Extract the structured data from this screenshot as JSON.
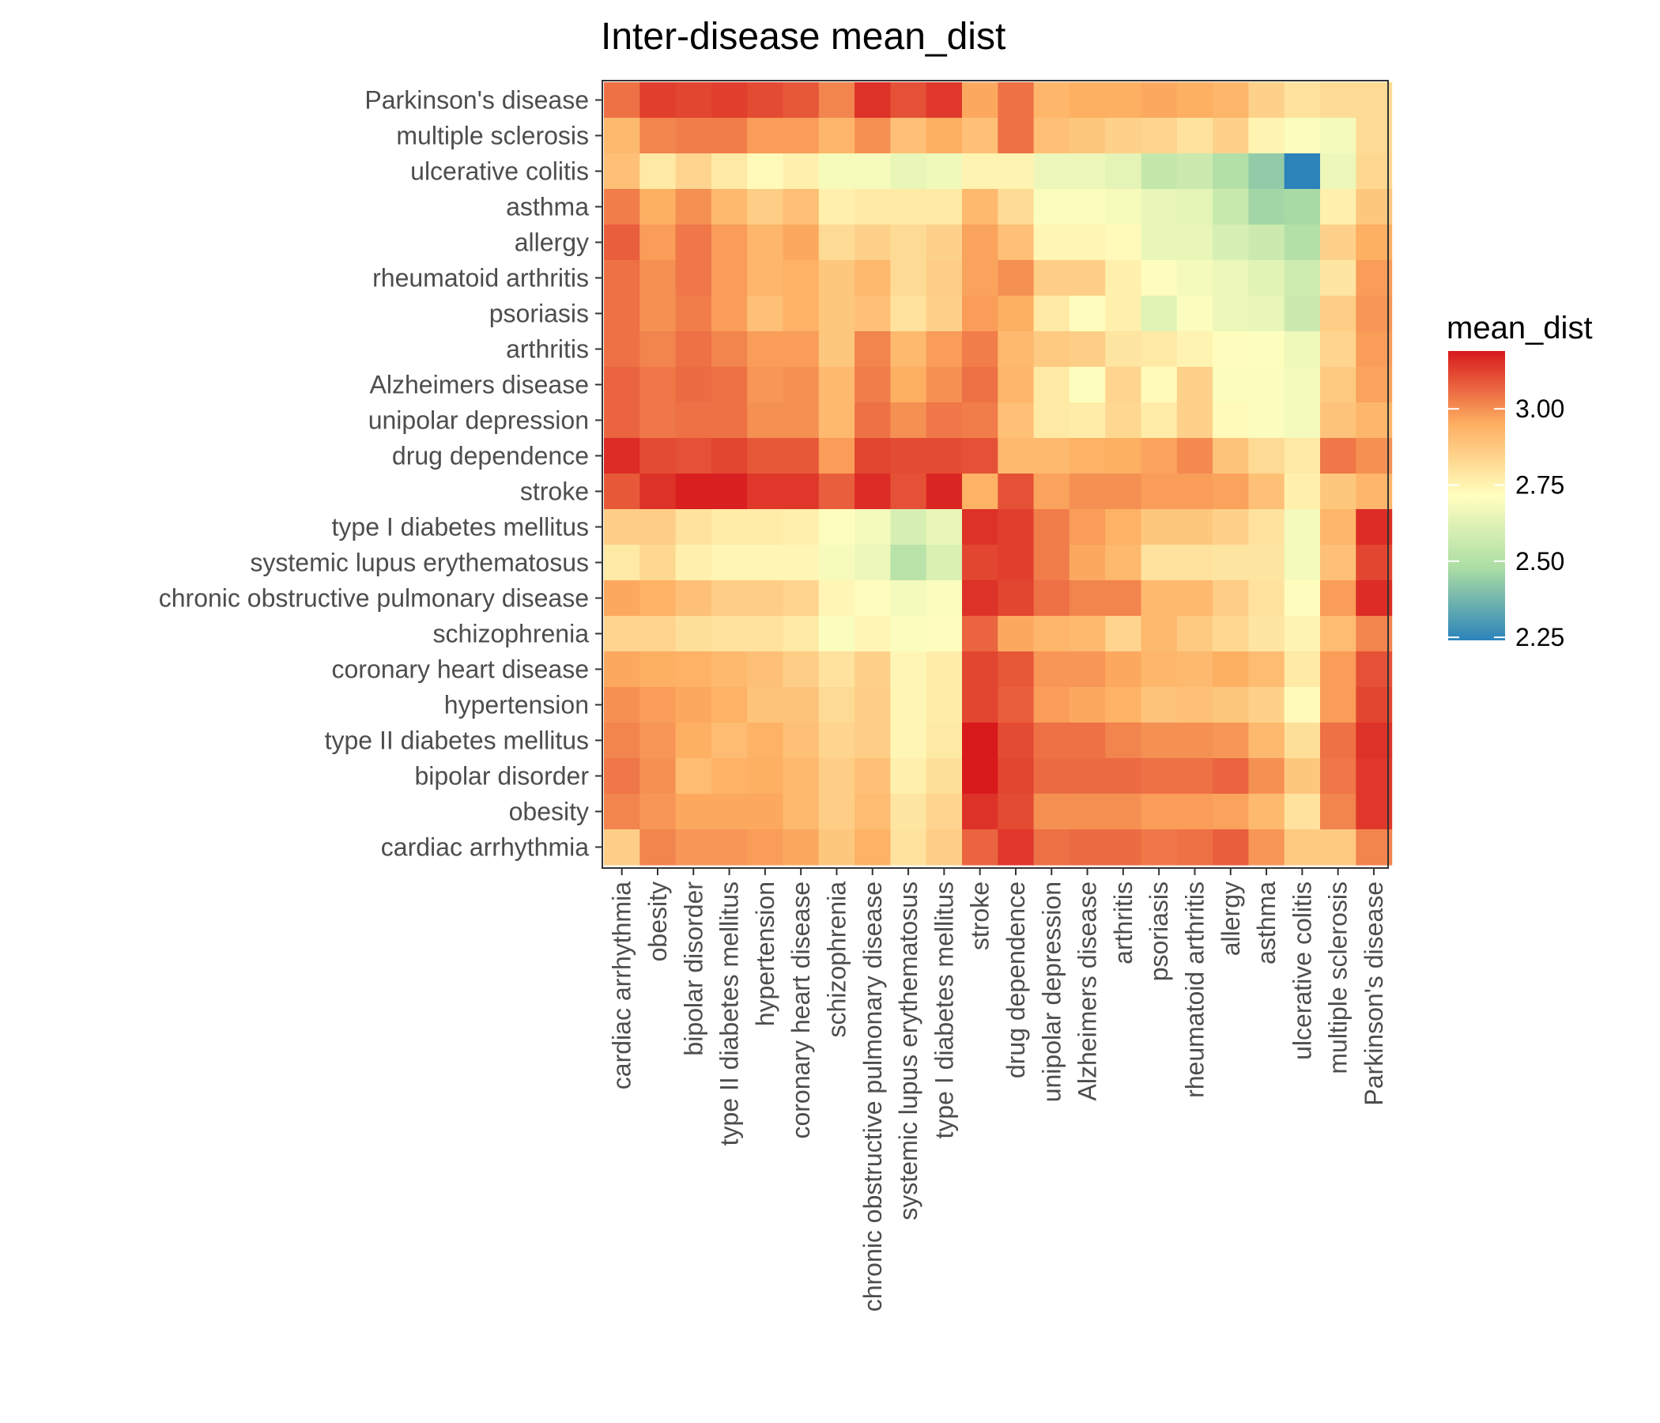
{
  "chart_data": {
    "type": "heatmap",
    "title": "Inter-disease mean_dist",
    "xlabel": "",
    "ylabel": "",
    "x_categories": [
      "cardiac arrhythmia",
      "obesity",
      "bipolar disorder",
      "type II diabetes mellitus",
      "hypertension",
      "coronary heart disease",
      "schizophrenia",
      "chronic obstructive pulmonary disease",
      "systemic lupus erythematosus",
      "type I diabetes mellitus",
      "stroke",
      "drug dependence",
      "unipolar depression",
      "Alzheimers disease",
      "arthritis",
      "psoriasis",
      "rheumatoid arthritis",
      "allergy",
      "asthma",
      "ulcerative colitis",
      "multiple sclerosis",
      "Parkinson's disease"
    ],
    "y_categories": [
      "Parkinson's disease",
      "multiple sclerosis",
      "ulcerative colitis",
      "asthma",
      "allergy",
      "rheumatoid arthritis",
      "psoriasis",
      "arthritis",
      "Alzheimers disease",
      "unipolar depression",
      "drug dependence",
      "stroke",
      "type I diabetes mellitus",
      "systemic lupus erythematosus",
      "chronic obstructive pulmonary disease",
      "schizophrenia",
      "coronary heart disease",
      "hypertension",
      "type II diabetes mellitus",
      "bipolar disorder",
      "obesity",
      "cardiac arrhythmia"
    ],
    "values": [
      [
        3.05,
        3.13,
        3.12,
        3.13,
        3.11,
        3.09,
        3.02,
        3.15,
        3.1,
        3.14,
        2.96,
        3.05,
        2.93,
        2.95,
        2.95,
        2.96,
        2.95,
        2.93,
        2.85,
        2.8,
        2.82,
        2.82
      ],
      [
        2.92,
        3.02,
        3.03,
        3.03,
        2.98,
        2.98,
        2.93,
        3.0,
        2.9,
        2.95,
        2.9,
        3.05,
        2.9,
        2.88,
        2.85,
        2.84,
        2.8,
        2.85,
        2.75,
        2.7,
        2.68,
        2.82
      ],
      [
        2.9,
        2.78,
        2.84,
        2.78,
        2.73,
        2.76,
        2.69,
        2.69,
        2.65,
        2.67,
        2.75,
        2.75,
        2.66,
        2.66,
        2.64,
        2.55,
        2.57,
        2.5,
        2.43,
        2.24,
        2.66,
        2.83
      ],
      [
        3.03,
        2.95,
        3.0,
        2.92,
        2.86,
        2.9,
        2.76,
        2.78,
        2.78,
        2.78,
        2.92,
        2.82,
        2.7,
        2.7,
        2.69,
        2.65,
        2.64,
        2.56,
        2.46,
        2.47,
        2.76,
        2.88
      ],
      [
        3.08,
        2.98,
        3.04,
        2.98,
        2.93,
        2.96,
        2.82,
        2.85,
        2.82,
        2.85,
        2.97,
        2.9,
        2.74,
        2.74,
        2.73,
        2.65,
        2.65,
        2.6,
        2.57,
        2.5,
        2.85,
        2.95
      ],
      [
        3.05,
        3.0,
        3.04,
        2.98,
        2.93,
        2.94,
        2.88,
        2.92,
        2.82,
        2.86,
        2.97,
        3.0,
        2.86,
        2.86,
        2.76,
        2.72,
        2.68,
        2.66,
        2.63,
        2.58,
        2.79,
        2.98
      ],
      [
        3.05,
        3.0,
        3.03,
        2.98,
        2.9,
        2.94,
        2.88,
        2.9,
        2.8,
        2.85,
        2.98,
        2.95,
        2.78,
        2.72,
        2.76,
        2.63,
        2.7,
        2.66,
        2.65,
        2.57,
        2.86,
        2.99
      ],
      [
        3.05,
        3.02,
        3.05,
        3.02,
        2.98,
        2.98,
        2.88,
        3.02,
        2.92,
        2.98,
        3.03,
        2.92,
        2.87,
        2.86,
        2.79,
        2.78,
        2.75,
        2.72,
        2.71,
        2.67,
        2.84,
        2.98
      ],
      [
        3.07,
        3.04,
        3.06,
        3.05,
        2.99,
        3.0,
        2.92,
        3.03,
        2.95,
        3.0,
        3.05,
        2.93,
        2.78,
        2.71,
        2.84,
        2.73,
        2.85,
        2.7,
        2.7,
        2.68,
        2.87,
        2.97
      ],
      [
        3.07,
        3.04,
        3.05,
        3.05,
        3.0,
        3.0,
        2.92,
        3.05,
        3.0,
        3.04,
        3.03,
        2.9,
        2.78,
        2.77,
        2.83,
        2.77,
        2.85,
        2.73,
        2.7,
        2.68,
        2.89,
        2.93
      ],
      [
        3.16,
        3.11,
        3.1,
        3.12,
        3.09,
        3.09,
        2.98,
        3.12,
        3.11,
        3.11,
        3.1,
        2.92,
        2.92,
        2.94,
        2.95,
        2.97,
        3.01,
        2.89,
        2.82,
        2.78,
        3.04,
        3.0
      ],
      [
        3.09,
        3.15,
        3.18,
        3.18,
        3.14,
        3.14,
        3.08,
        3.16,
        3.1,
        3.17,
        2.94,
        3.1,
        2.97,
        3.0,
        3.0,
        2.98,
        2.98,
        2.97,
        2.9,
        2.76,
        2.88,
        2.93
      ],
      [
        2.86,
        2.86,
        2.8,
        2.77,
        2.77,
        2.76,
        2.71,
        2.68,
        2.6,
        2.65,
        3.15,
        3.13,
        3.03,
        2.98,
        2.94,
        2.88,
        2.88,
        2.85,
        2.8,
        2.68,
        2.93,
        3.16
      ],
      [
        2.78,
        2.83,
        2.76,
        2.74,
        2.74,
        2.74,
        2.69,
        2.66,
        2.52,
        2.61,
        3.12,
        3.13,
        3.03,
        2.96,
        2.92,
        2.8,
        2.8,
        2.79,
        2.79,
        2.68,
        2.9,
        3.12
      ],
      [
        2.96,
        2.94,
        2.9,
        2.86,
        2.86,
        2.84,
        2.74,
        2.72,
        2.68,
        2.7,
        3.15,
        3.12,
        3.05,
        3.02,
        3.02,
        2.92,
        2.92,
        2.86,
        2.8,
        2.72,
        2.98,
        3.16
      ],
      [
        2.84,
        2.84,
        2.81,
        2.8,
        2.8,
        2.78,
        2.7,
        2.74,
        2.7,
        2.72,
        3.07,
        2.96,
        2.93,
        2.92,
        2.84,
        2.92,
        2.87,
        2.83,
        2.79,
        2.75,
        2.91,
        3.02
      ],
      [
        2.96,
        2.95,
        2.94,
        2.92,
        2.9,
        2.86,
        2.8,
        2.85,
        2.74,
        2.77,
        3.12,
        3.09,
        2.99,
        2.99,
        2.96,
        2.93,
        2.92,
        2.95,
        2.91,
        2.78,
        2.98,
        3.1
      ],
      [
        3.0,
        2.98,
        2.96,
        2.94,
        2.89,
        2.89,
        2.82,
        2.86,
        2.74,
        2.77,
        3.12,
        3.08,
        2.98,
        2.96,
        2.94,
        2.89,
        2.9,
        2.88,
        2.85,
        2.73,
        2.98,
        3.12
      ],
      [
        3.02,
        2.99,
        2.95,
        2.91,
        2.94,
        2.9,
        2.84,
        2.86,
        2.74,
        2.78,
        3.19,
        3.11,
        3.05,
        3.05,
        3.02,
        3.0,
        3.0,
        2.99,
        2.92,
        2.81,
        3.05,
        3.15
      ],
      [
        3.04,
        3.0,
        2.91,
        2.94,
        2.95,
        2.92,
        2.86,
        2.9,
        2.76,
        2.81,
        3.19,
        3.12,
        3.06,
        3.06,
        3.06,
        3.05,
        3.05,
        3.07,
        3.0,
        2.88,
        3.04,
        3.14
      ],
      [
        3.02,
        2.99,
        2.96,
        2.96,
        2.96,
        2.92,
        2.86,
        2.91,
        2.79,
        2.84,
        3.15,
        3.11,
        3.0,
        3.0,
        3.0,
        2.98,
        2.98,
        2.97,
        2.92,
        2.8,
        3.02,
        3.14
      ],
      [
        2.86,
        3.02,
        2.99,
        2.99,
        2.98,
        2.96,
        2.88,
        2.94,
        2.8,
        2.86,
        3.07,
        3.14,
        3.05,
        3.06,
        3.06,
        3.04,
        3.05,
        3.08,
        2.99,
        2.87,
        2.87,
        3.02
      ]
    ],
    "legend": {
      "title": "mean_dist",
      "position": "right",
      "ticks": [
        "3.00",
        "2.75",
        "2.50",
        "2.25"
      ],
      "tick_values": [
        3.0,
        2.75,
        2.5,
        2.25
      ],
      "range": [
        2.24,
        3.19
      ],
      "palette": "Spectral (reversed)",
      "colors": [
        "#2b83ba",
        "#abdda4",
        "#ffffbf",
        "#fdae61",
        "#d7191c"
      ]
    },
    "grid": false
  }
}
